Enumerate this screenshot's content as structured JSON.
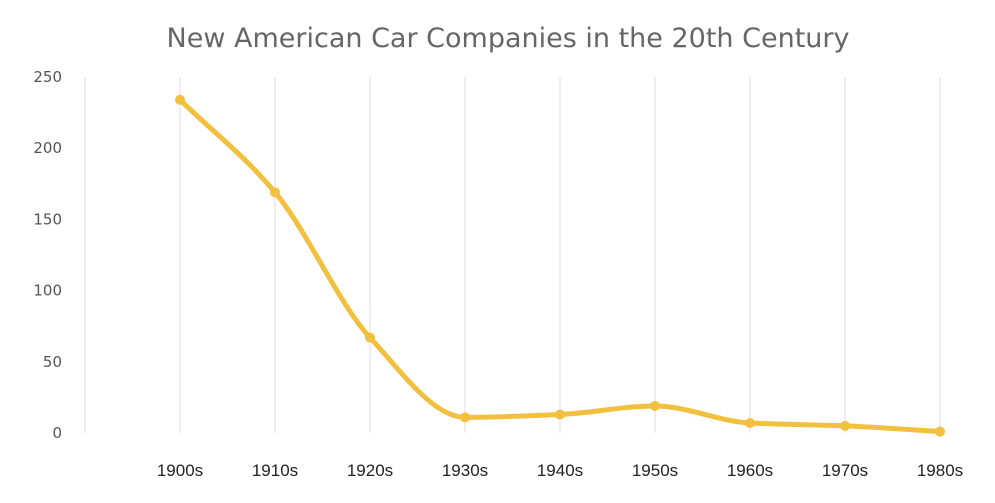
{
  "chart_data": {
    "type": "line",
    "title": "New American Car Companies in the 20th Century",
    "xlabel": "",
    "ylabel": "",
    "categories": [
      "1900s",
      "1910s",
      "1920s",
      "1930s",
      "1940s",
      "1950s",
      "1960s",
      "1970s",
      "1980s"
    ],
    "series": [
      {
        "name": "New American Car Companies",
        "values": [
          234,
          169,
          67,
          11,
          13,
          19,
          7,
          5,
          1
        ]
      }
    ],
    "ylim": [
      0,
      250
    ],
    "yticks": [
      "0",
      "50",
      "100",
      "150",
      "200",
      "250"
    ],
    "grid": "vertical",
    "smooth": true,
    "colors": {
      "line": "#F2C03F",
      "grid": "#DDDDDD"
    }
  }
}
